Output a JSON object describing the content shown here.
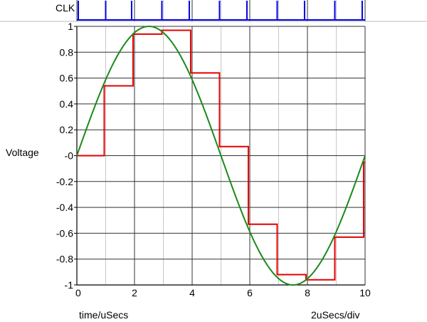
{
  "chart_data": {
    "type": "line",
    "title": "",
    "ylabel": "Voltage",
    "xlabel": "time/uSecs",
    "x_scale_note": "2uSecs/div",
    "clock_label": "CLK",
    "xlim": [
      0,
      10
    ],
    "ylim": [
      -1,
      1
    ],
    "x_ticks": [
      0,
      2,
      4,
      6,
      8,
      10
    ],
    "x_tick_labels": [
      "0",
      "2",
      "4",
      "6",
      "8",
      "10"
    ],
    "y_ticks": [
      1,
      0.8,
      0.6,
      0.4,
      0.2,
      0,
      -0.2,
      -0.4,
      -0.6,
      -0.8,
      -1
    ],
    "y_tick_labels": [
      "1",
      "0.8",
      "0.6",
      "0.4",
      "0.2",
      "-0",
      "-0.2",
      "-0.4",
      "-0.6",
      "-0.8",
      "-1"
    ],
    "grid": true,
    "clock_edges": [
      0.05,
      1.0,
      1.9,
      2.95,
      3.9,
      4.95,
      5.9,
      6.95,
      7.9,
      8.95,
      9.9
    ],
    "series": [
      {
        "type": "step",
        "color": "#e60000",
        "x": [
          0,
          0.95,
          1.95,
          2.95,
          3.95,
          4.95,
          5.95,
          6.95,
          7.95,
          8.95,
          9.95,
          10.0
        ],
        "y": [
          0,
          0.54,
          0.94,
          0.97,
          0.64,
          0.07,
          -0.53,
          -0.92,
          -0.96,
          -0.63,
          -0.05,
          -0.05
        ]
      },
      {
        "type": "sine",
        "color": "#1a8a1a",
        "amplitude": 1,
        "period": 10,
        "x_start": 0,
        "x_end": 10
      }
    ]
  }
}
